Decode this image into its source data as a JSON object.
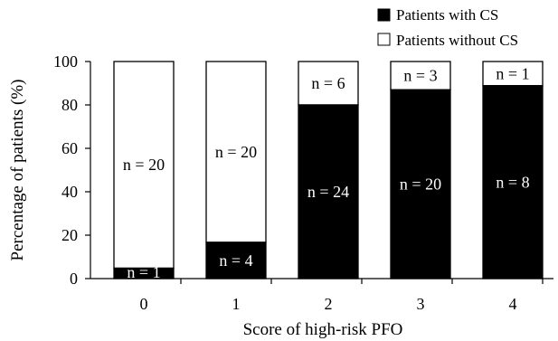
{
  "chart_data": {
    "type": "bar",
    "stacked": true,
    "title": "",
    "xlabel": "Score of high-risk PFO",
    "ylabel": "Percentage of patients (%)",
    "ylim": [
      0,
      100
    ],
    "yticks": [
      "0",
      "20",
      "40",
      "60",
      "80",
      "100"
    ],
    "categories": [
      "0",
      "1",
      "2",
      "3",
      "4"
    ],
    "series": [
      {
        "name": "Patients with CS",
        "color": "#000000",
        "values": [
          4.8,
          16.7,
          80.0,
          87.0,
          88.9
        ],
        "labels": [
          "n = 1",
          "n = 4",
          "n = 24",
          "n = 20",
          "n =  8"
        ]
      },
      {
        "name": "Patients without CS",
        "color": "#ffffff",
        "values": [
          95.2,
          83.3,
          20.0,
          13.0,
          11.1
        ],
        "labels": [
          "n = 20",
          "n = 20",
          "n = 6",
          "n = 3",
          "n = 1"
        ]
      }
    ],
    "legend": {
      "position": "top-right"
    },
    "grid": false
  }
}
